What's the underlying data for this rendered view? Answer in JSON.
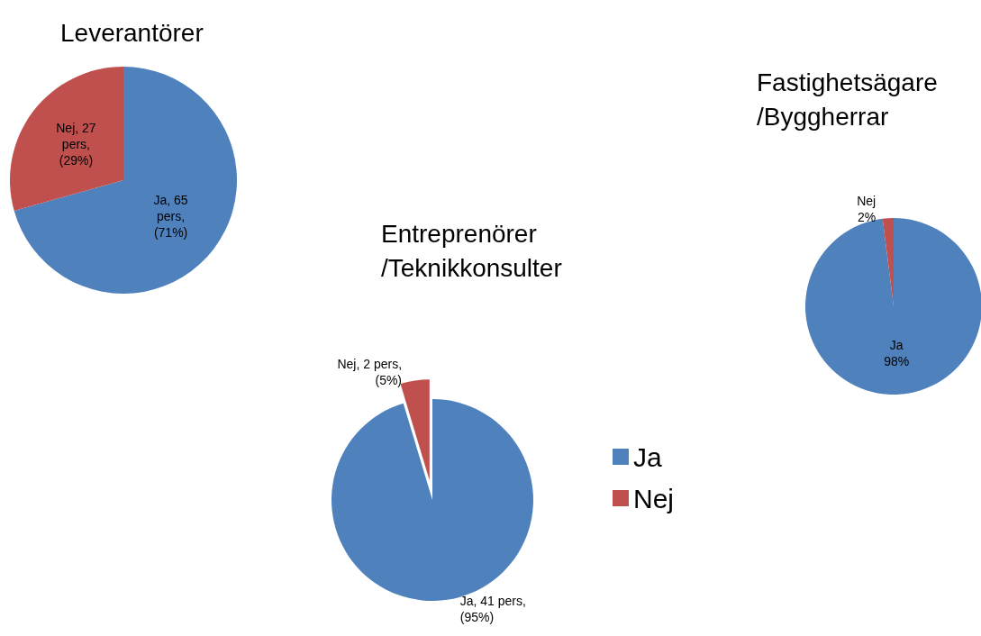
{
  "chart_data": [
    {
      "type": "pie",
      "title": "Leverantörer",
      "categories": [
        "Ja",
        "Nej"
      ],
      "values": [
        65,
        27
      ],
      "colors": [
        "#4f81bd",
        "#c0504d"
      ],
      "value_labels": [
        ", 65 pers, (71%)",
        ", 27 pers, (29%)"
      ],
      "legend": false
    },
    {
      "type": "pie",
      "title": "Entreprenörer /Teknikkonsulter",
      "categories": [
        "Ja",
        "Nej"
      ],
      "values": [
        41,
        2
      ],
      "colors": [
        "#4f81bd",
        "#c0504d"
      ],
      "value_labels": [
        ", 41 pers, (95%)",
        ", 2 pers, (5%)"
      ],
      "legend": "right"
    },
    {
      "type": "pie",
      "title": "Fastighetsägare /Byggherrar",
      "categories": [
        "Ja",
        "Nej"
      ],
      "values": [
        98,
        2
      ],
      "colors": [
        "#4f81bd",
        "#c0504d"
      ],
      "value_labels": [
        "98%",
        "2%"
      ],
      "legend": false
    }
  ]
}
